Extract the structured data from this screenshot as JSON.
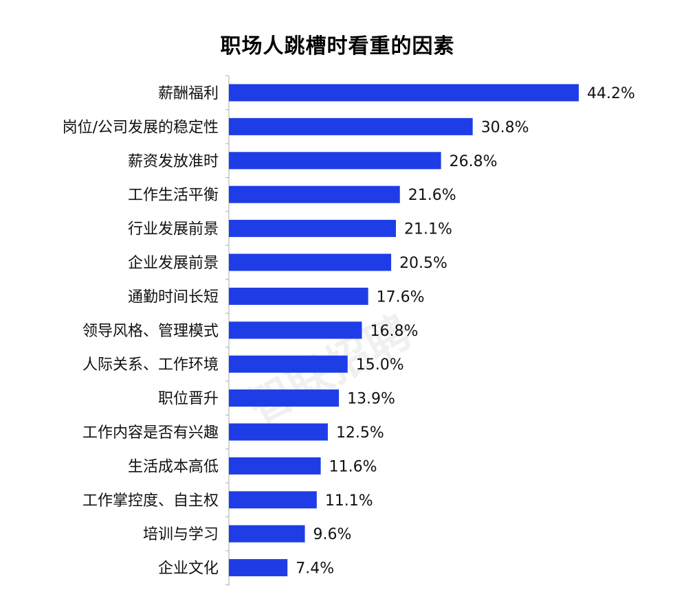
{
  "chart_data": {
    "type": "bar",
    "orientation": "horizontal",
    "title": "职场人跳槽时看重的因素",
    "xlabel": "",
    "ylabel": "",
    "xlim": [
      0,
      44.2
    ],
    "grid": false,
    "legend": "none",
    "bar_color": "#1f3de6",
    "value_format": "percent-1dp",
    "watermark": "智联招聘",
    "categories": [
      "薪酬福利",
      "岗位/公司发展的稳定性",
      "薪资发放准时",
      "工作生活平衡",
      "行业发展前景",
      "企业发展前景",
      "通勤时间长短",
      "领导风格、管理模式",
      "人际关系、工作环境",
      "职位晋升",
      "工作内容是否有兴趣",
      "生活成本高低",
      "工作掌控度、自主权",
      "培训与学习",
      "企业文化"
    ],
    "values": [
      44.2,
      30.8,
      26.8,
      21.6,
      21.1,
      20.5,
      17.6,
      16.8,
      15.0,
      13.9,
      12.5,
      11.6,
      11.1,
      9.6,
      7.4
    ],
    "labels": [
      "44.2%",
      "30.8%",
      "26.8%",
      "21.6%",
      "21.1%",
      "20.5%",
      "17.6%",
      "16.8%",
      "15.0%",
      "13.9%",
      "12.5%",
      "11.6%",
      "11.1%",
      "9.6%",
      "7.4%"
    ]
  }
}
